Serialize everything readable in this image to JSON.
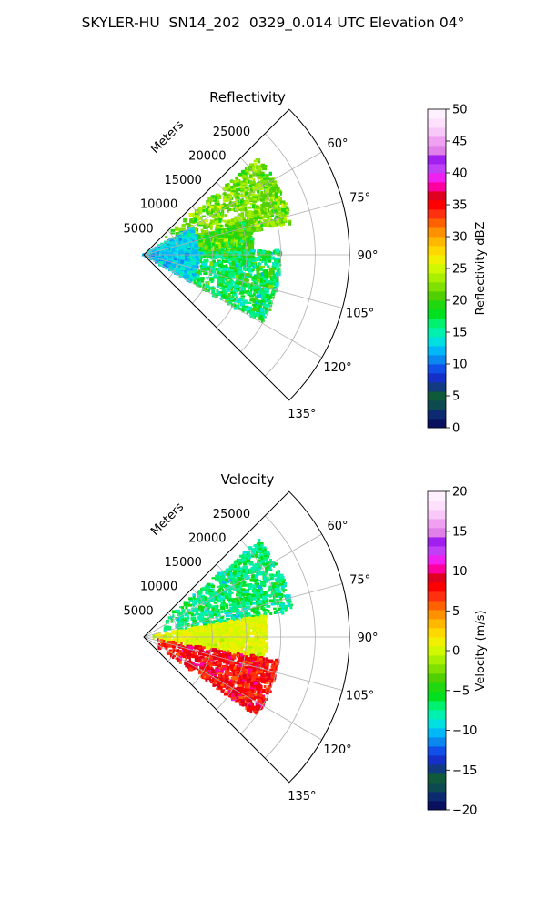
{
  "page_title": "SKYLER-HU  SN14_202  0329_0.014 UTC Elevation 04°",
  "chart_data": [
    {
      "type": "heatmap",
      "projection": "polar sector",
      "title": "Reflectivity",
      "radial_axis_label": "Meters",
      "radial_ticks": [
        "5000",
        "10000",
        "15000",
        "20000",
        "25000"
      ],
      "radial_tick_values": [
        5000,
        10000,
        15000,
        20000,
        25000
      ],
      "radial_range": [
        0,
        30000
      ],
      "angular_ticks": [
        "60°",
        "75°",
        "90°",
        "105°",
        "120°",
        "135°"
      ],
      "angular_tick_values": [
        60,
        75,
        90,
        105,
        120,
        135
      ],
      "angular_range": [
        45,
        135
      ],
      "grid": true,
      "colorbar": {
        "label": "Reflectivity dBZ",
        "range": [
          0,
          50
        ],
        "ticks": [
          "0",
          "5",
          "10",
          "15",
          "20",
          "25",
          "30",
          "35",
          "40",
          "45",
          "50"
        ],
        "tick_values": [
          0,
          5,
          10,
          15,
          20,
          25,
          30,
          35,
          40,
          45,
          50
        ],
        "colors": [
          "#0a1060",
          "#0b2a70",
          "#0d4a50",
          "#0f5a3a",
          "#123a80",
          "#1530c8",
          "#1050e8",
          "#0a88f0",
          "#00b8f8",
          "#00e0e0",
          "#00f0b0",
          "#00f070",
          "#00e020",
          "#20d810",
          "#50d000",
          "#80e000",
          "#a8f000",
          "#d0f800",
          "#f0f000",
          "#ffd800",
          "#ffb800",
          "#ff9000",
          "#ff6000",
          "#ff3010",
          "#ff0000",
          "#e00020",
          "#ff00a0",
          "#f020f0",
          "#c040f8",
          "#a020f0",
          "#e080e8",
          "#f0a0f0",
          "#f8c8f8",
          "#fce0fc",
          "#fff0ff"
        ]
      },
      "echo_regions": [
        {
          "az": [
            50,
            78
          ],
          "r": [
            3000,
            22000
          ],
          "dominant": "green",
          "values_dbz": [
            18,
            26
          ]
        },
        {
          "az": [
            72,
            92
          ],
          "r": [
            2000,
            16000
          ],
          "dominant": "green-yellow",
          "values_dbz": [
            15,
            25
          ]
        },
        {
          "az": [
            88,
            120
          ],
          "r": [
            2000,
            20000
          ],
          "dominant": "green",
          "values_dbz": [
            12,
            22
          ]
        },
        {
          "az": [
            60,
            120
          ],
          "r": [
            0,
            8000
          ],
          "dominant": "cyan",
          "values_dbz": [
            10,
            16
          ]
        }
      ]
    },
    {
      "type": "heatmap",
      "projection": "polar sector",
      "title": "Velocity",
      "radial_axis_label": "Meters",
      "radial_ticks": [
        "5000",
        "10000",
        "15000",
        "20000",
        "25000"
      ],
      "radial_tick_values": [
        5000,
        10000,
        15000,
        20000,
        25000
      ],
      "radial_range": [
        0,
        30000
      ],
      "angular_ticks": [
        "60°",
        "75°",
        "90°",
        "105°",
        "120°",
        "135°"
      ],
      "angular_tick_values": [
        60,
        75,
        90,
        105,
        120,
        135
      ],
      "angular_range": [
        45,
        135
      ],
      "grid": true,
      "colorbar": {
        "label": "Velocity (m/s)",
        "range": [
          -20,
          20
        ],
        "ticks": [
          "−20",
          "−15",
          "−10",
          "−5",
          "0",
          "5",
          "10",
          "15",
          "20"
        ],
        "tick_values": [
          -20,
          -15,
          -10,
          -5,
          0,
          5,
          10,
          15,
          20
        ],
        "colors": [
          "#0a1060",
          "#0b2a70",
          "#0d4a50",
          "#0f5a3a",
          "#123a80",
          "#1530c8",
          "#1050e8",
          "#0a88f0",
          "#00b8f8",
          "#00e0e0",
          "#00f0b0",
          "#00f070",
          "#00e020",
          "#20d810",
          "#50d000",
          "#80e000",
          "#a8f000",
          "#d0f800",
          "#f0f000",
          "#ffd800",
          "#ffb800",
          "#ff9000",
          "#ff6000",
          "#ff3010",
          "#ff0000",
          "#e00020",
          "#ff00a0",
          "#f020f0",
          "#c040f8",
          "#a020f0",
          "#e080e8",
          "#f0a0f0",
          "#f8c8f8",
          "#fce0fc",
          "#fff0ff"
        ]
      },
      "echo_regions": [
        {
          "az": [
            50,
            80
          ],
          "r": [
            3000,
            22000
          ],
          "dominant": "green",
          "values_ms": [
            -10,
            -4
          ]
        },
        {
          "az": [
            80,
            100
          ],
          "r": [
            1000,
            18000
          ],
          "dominant": "yellow",
          "values_ms": [
            -1,
            2
          ]
        },
        {
          "az": [
            100,
            125
          ],
          "r": [
            2000,
            20000
          ],
          "dominant": "orange-red",
          "values_ms": [
            5,
            11
          ]
        }
      ]
    }
  ]
}
